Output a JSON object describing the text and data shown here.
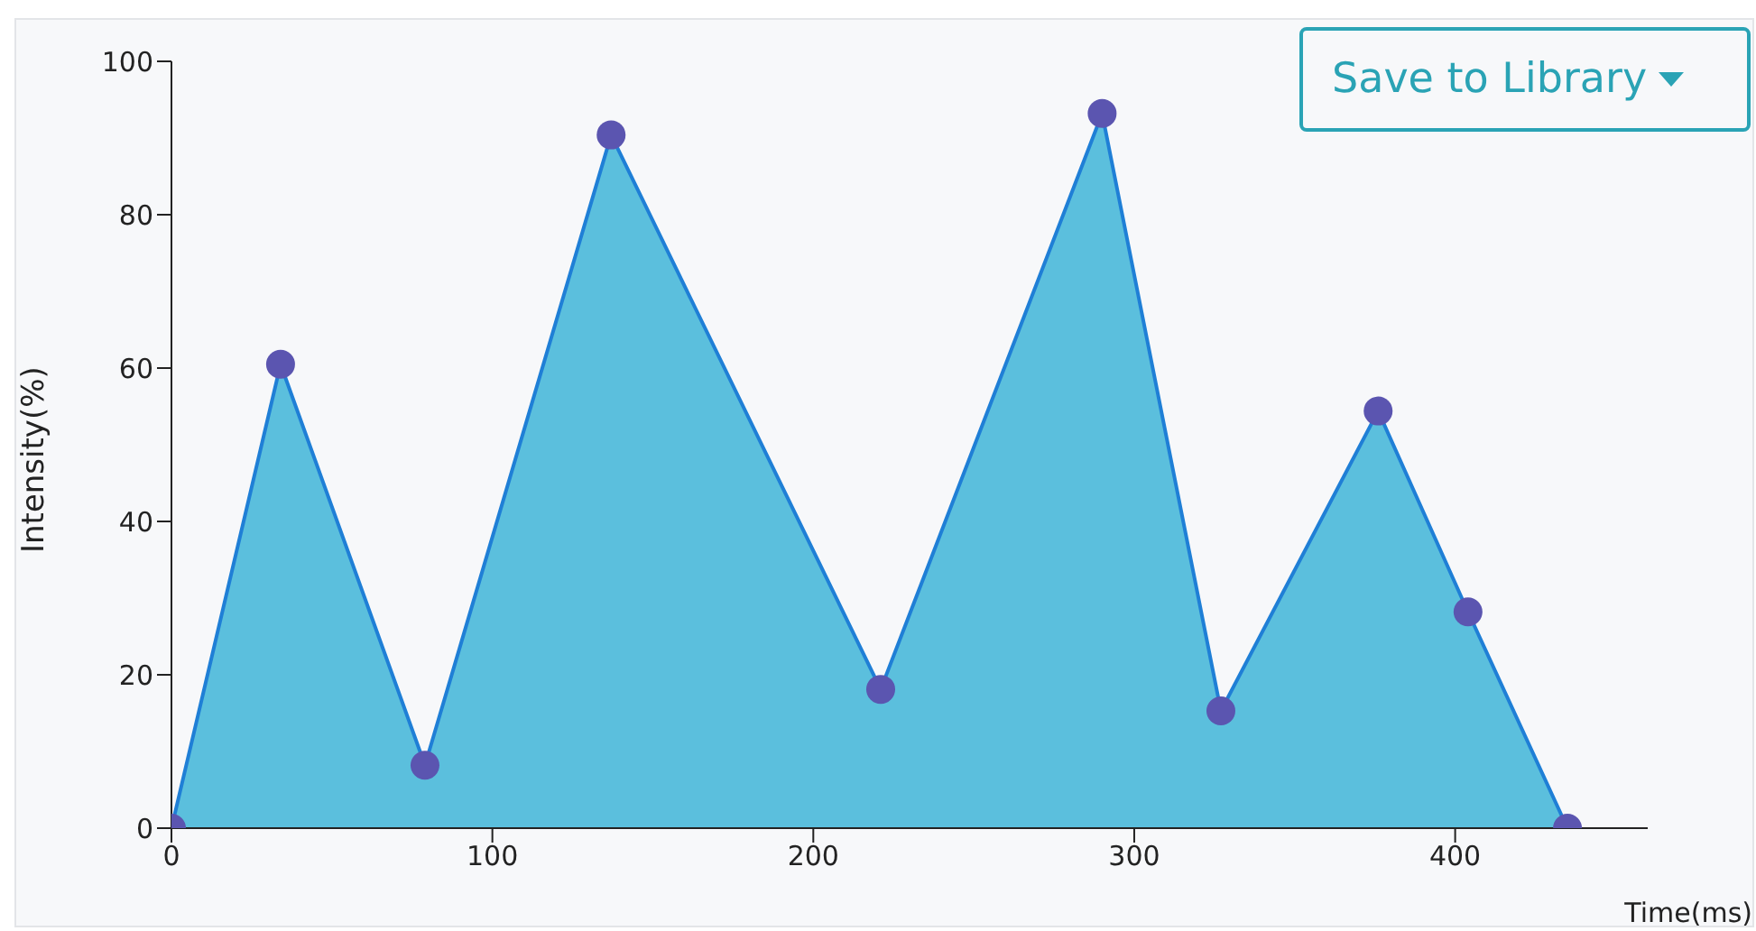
{
  "chart_data": {
    "type": "area",
    "xlabel": "Time(ms)",
    "ylabel": "Intensity(%)",
    "annotations": [
      "Save to Library"
    ],
    "x": [
      0,
      34,
      79,
      137,
      221,
      290,
      327,
      376,
      404,
      435
    ],
    "series": [
      {
        "color": "#5bbfdd",
        "values": [
          0,
          60.5,
          8.2,
          90.4,
          18.1,
          93.2,
          15.3,
          54.4,
          28.2,
          0
        ]
      }
    ],
    "xlim": [
      0,
      460
    ],
    "xticks": [
      0,
      100,
      200,
      300,
      400
    ],
    "ylim": [
      0,
      100
    ],
    "yticks": [
      0,
      20,
      40,
      60,
      80,
      100
    ],
    "grid": false,
    "legend": false,
    "marker": "circle"
  }
}
